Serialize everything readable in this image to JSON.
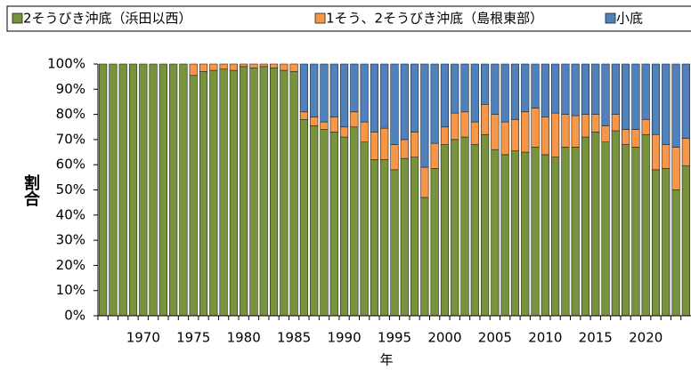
{
  "chart_data": {
    "type": "stacked_bar",
    "x_label": "年",
    "y_label": "割合",
    "categories": [
      null,
      null,
      null,
      null,
      "1970",
      null,
      null,
      null,
      null,
      "1975",
      null,
      null,
      null,
      null,
      "1980",
      null,
      null,
      null,
      null,
      "1985",
      null,
      null,
      null,
      null,
      "1990",
      null,
      null,
      null,
      null,
      "1995",
      null,
      null,
      null,
      null,
      "2000",
      null,
      null,
      null,
      null,
      "2005",
      null,
      null,
      null,
      null,
      "2010",
      null,
      null,
      null,
      null,
      "2015",
      null,
      null,
      null,
      null,
      "2020",
      null,
      null,
      null,
      null
    ],
    "series": [
      {
        "name": "2そうびき沖底（浜田以西）",
        "color": "#77933c",
        "values": [
          100,
          100,
          100,
          100,
          100,
          100,
          100,
          100,
          100,
          95.5,
          97,
          97.5,
          98,
          97.5,
          99,
          98.5,
          99,
          98.5,
          97.5,
          97,
          78,
          75.5,
          74,
          73,
          71,
          75,
          69,
          62,
          62,
          58,
          62.5,
          63,
          47,
          58.5,
          68,
          70,
          71,
          68,
          72,
          66,
          64,
          65.5,
          65,
          67,
          64,
          63,
          67,
          67,
          71,
          73,
          69,
          73.5,
          68,
          67,
          72,
          58,
          58.5,
          50,
          59.5
        ]
      },
      {
        "name": "1そう、2そうびき沖底（島根東部）",
        "color": "#f79646",
        "values": [
          0,
          0,
          0,
          0,
          0,
          0,
          0,
          0,
          0,
          4.5,
          3,
          2.5,
          2,
          2.5,
          1,
          1.5,
          1,
          1.5,
          2.5,
          3,
          3,
          3.5,
          3,
          6,
          4,
          6,
          8,
          11,
          12.5,
          10,
          7.5,
          10,
          12,
          10,
          7,
          10.5,
          10,
          9,
          12,
          14,
          13,
          12.5,
          16,
          15.5,
          15,
          17.5,
          13,
          12.5,
          9,
          7,
          6.5,
          6.5,
          6,
          7,
          6,
          14,
          9.5,
          17,
          11
        ]
      },
      {
        "name": "小底",
        "color": "#4f81bd",
        "values": [
          0,
          0,
          0,
          0,
          0,
          0,
          0,
          0,
          0,
          0,
          0,
          0,
          0,
          0,
          0,
          0,
          0,
          0,
          0,
          0,
          19,
          21,
          23,
          21,
          25,
          19,
          23,
          27,
          25.5,
          32,
          30,
          27,
          41,
          31.5,
          25,
          19.5,
          19,
          23,
          16,
          20,
          23,
          22,
          19,
          17.5,
          21,
          19.5,
          20,
          20.5,
          20,
          20,
          24.5,
          20,
          26,
          26,
          22,
          28,
          32,
          33,
          29.5
        ]
      }
    ],
    "ylim": [
      0,
      100
    ],
    "yticks": [
      {
        "value": 0,
        "label": "0%"
      },
      {
        "value": 10,
        "label": "10%"
      },
      {
        "value": 20,
        "label": "20%"
      },
      {
        "value": 30,
        "label": "30%"
      },
      {
        "value": 40,
        "label": "40%"
      },
      {
        "value": 50,
        "label": "50%"
      },
      {
        "value": 60,
        "label": "60%"
      },
      {
        "value": 70,
        "label": "70%"
      },
      {
        "value": 80,
        "label": "80%"
      },
      {
        "value": 90,
        "label": "90%"
      },
      {
        "value": 100,
        "label": "100%"
      }
    ]
  }
}
